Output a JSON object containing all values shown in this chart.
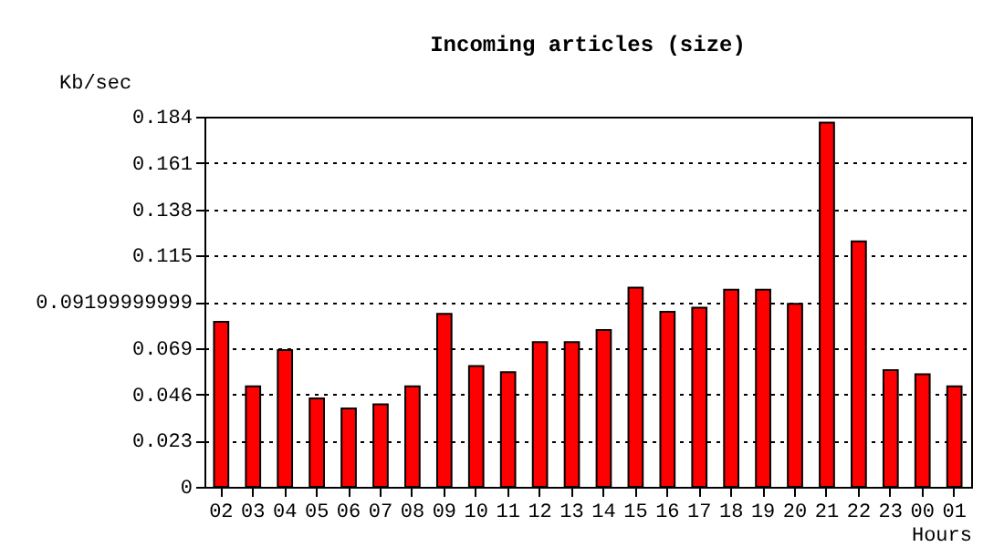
{
  "chart_data": {
    "type": "bar",
    "title": "Incoming articles (size)",
    "xlabel": "Hours",
    "ylabel": "Kb/sec",
    "categories": [
      "02",
      "03",
      "04",
      "05",
      "06",
      "07",
      "08",
      "09",
      "10",
      "11",
      "12",
      "13",
      "14",
      "15",
      "16",
      "17",
      "18",
      "19",
      "20",
      "21",
      "22",
      "23",
      "00",
      "01"
    ],
    "values": [
      0.082,
      0.05,
      0.068,
      0.044,
      0.039,
      0.041,
      0.05,
      0.086,
      0.06,
      0.057,
      0.072,
      0.072,
      0.078,
      0.099,
      0.087,
      0.089,
      0.098,
      0.098,
      0.091,
      0.181,
      0.122,
      0.058,
      0.056,
      0.05
    ],
    "color": "#ff0000",
    "ylim": [
      0,
      0.184
    ],
    "yticks": [
      0,
      0.023,
      0.046,
      0.069,
      0.09199999999,
      0.115,
      0.138,
      0.161,
      0.184
    ],
    "grid": "y",
    "line_style": "dotted"
  }
}
